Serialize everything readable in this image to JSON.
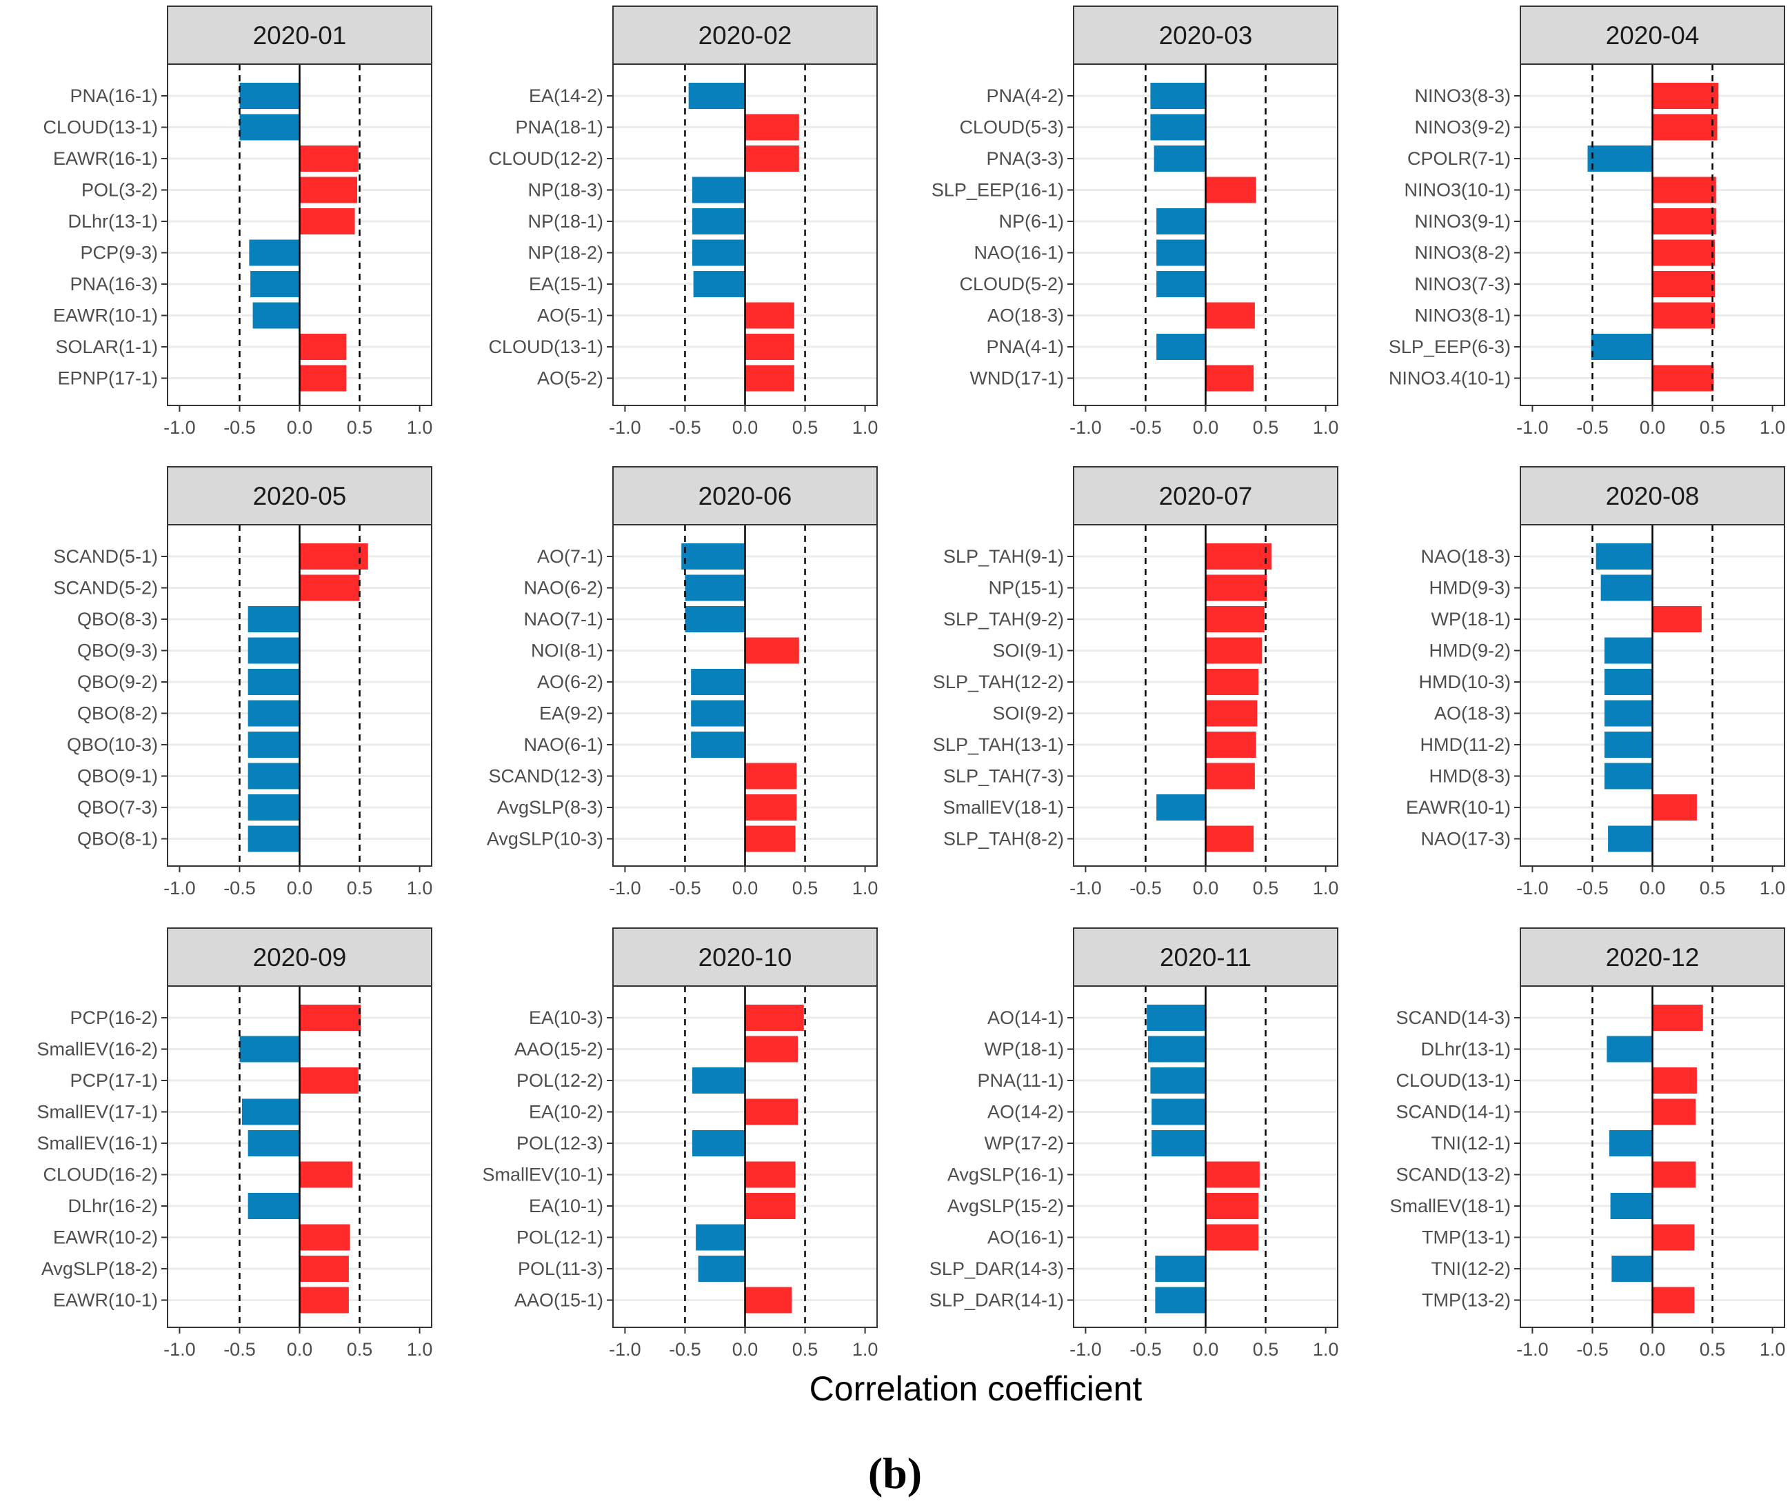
{
  "chart_data": {
    "type": "bar",
    "orientation": "horizontal",
    "xlabel": "Correlation coefficient",
    "caption": "(b)",
    "xlim": [
      -1.1,
      1.1
    ],
    "ticks": [
      -1.0,
      -0.5,
      0.0,
      0.5,
      1.0
    ],
    "tick_labels": [
      "-1.0",
      "-0.5",
      "0.0",
      "0.5",
      "1.0"
    ],
    "reference_lines": [
      -0.5,
      0.5
    ],
    "grid": true,
    "colors": {
      "positive": "#ff2a2a",
      "negative": "#0780bb",
      "strip": "#d9d9d9",
      "grid": "#ebebeb",
      "frame": "#333333"
    },
    "panels": [
      {
        "title": "2020-01",
        "categories": [
          "PNA(16-1)",
          "CLOUD(13-1)",
          "EAWR(16-1)",
          "POL(3-2)",
          "DLhr(13-1)",
          "PCP(9-3)",
          "PNA(16-3)",
          "EAWR(10-1)",
          "SOLAR(1-1)",
          "EPNP(17-1)"
        ],
        "values": [
          -0.5,
          -0.5,
          0.49,
          0.48,
          0.46,
          -0.42,
          -0.41,
          -0.39,
          0.39,
          0.39
        ]
      },
      {
        "title": "2020-02",
        "categories": [
          "EA(14-2)",
          "PNA(18-1)",
          "CLOUD(12-2)",
          "NP(18-3)",
          "NP(18-1)",
          "NP(18-2)",
          "EA(15-1)",
          "AO(5-1)",
          "CLOUD(13-1)",
          "AO(5-2)"
        ],
        "values": [
          -0.47,
          0.45,
          0.45,
          -0.44,
          -0.44,
          -0.44,
          -0.43,
          0.41,
          0.41,
          0.41
        ]
      },
      {
        "title": "2020-03",
        "categories": [
          "PNA(4-2)",
          "CLOUD(5-3)",
          "PNA(3-3)",
          "SLP_EEP(16-1)",
          "NP(6-1)",
          "NAO(16-1)",
          "CLOUD(5-2)",
          "AO(18-3)",
          "PNA(4-1)",
          "WND(17-1)"
        ],
        "values": [
          -0.46,
          -0.46,
          -0.43,
          0.42,
          -0.41,
          -0.41,
          -0.41,
          0.41,
          -0.41,
          0.4
        ]
      },
      {
        "title": "2020-04",
        "categories": [
          "NINO3(8-3)",
          "NINO3(9-2)",
          "CPOLR(7-1)",
          "NINO3(10-1)",
          "NINO3(9-1)",
          "NINO3(8-2)",
          "NINO3(7-3)",
          "NINO3(8-1)",
          "SLP_EEP(6-3)",
          "NINO3.4(10-1)"
        ],
        "values": [
          0.55,
          0.54,
          -0.54,
          0.53,
          0.53,
          0.52,
          0.52,
          0.52,
          -0.51,
          0.51
        ]
      },
      {
        "title": "2020-05",
        "categories": [
          "SCAND(5-1)",
          "SCAND(5-2)",
          "QBO(8-3)",
          "QBO(9-3)",
          "QBO(9-2)",
          "QBO(8-2)",
          "QBO(10-3)",
          "QBO(9-1)",
          "QBO(7-3)",
          "QBO(8-1)"
        ],
        "values": [
          0.57,
          0.5,
          -0.43,
          -0.43,
          -0.43,
          -0.43,
          -0.43,
          -0.43,
          -0.43,
          -0.43
        ]
      },
      {
        "title": "2020-06",
        "categories": [
          "AO(7-1)",
          "NAO(6-2)",
          "NAO(7-1)",
          "NOI(8-1)",
          "AO(6-2)",
          "EA(9-2)",
          "NAO(6-1)",
          "SCAND(12-3)",
          "AvgSLP(8-3)",
          "AvgSLP(10-3)"
        ],
        "values": [
          -0.53,
          -0.5,
          -0.5,
          0.45,
          -0.45,
          -0.45,
          -0.45,
          0.43,
          0.43,
          0.42
        ]
      },
      {
        "title": "2020-07",
        "categories": [
          "SLP_TAH(9-1)",
          "NP(15-1)",
          "SLP_TAH(9-2)",
          "SOI(9-1)",
          "SLP_TAH(12-2)",
          "SOI(9-2)",
          "SLP_TAH(13-1)",
          "SLP_TAH(7-3)",
          "SmallEV(18-1)",
          "SLP_TAH(8-2)"
        ],
        "values": [
          0.55,
          0.51,
          0.49,
          0.47,
          0.44,
          0.43,
          0.42,
          0.41,
          -0.41,
          0.4
        ]
      },
      {
        "title": "2020-08",
        "categories": [
          "NAO(18-3)",
          "HMD(9-3)",
          "WP(18-1)",
          "HMD(9-2)",
          "HMD(10-3)",
          "AO(18-3)",
          "HMD(11-2)",
          "HMD(8-3)",
          "EAWR(10-1)",
          "NAO(17-3)"
        ],
        "values": [
          -0.47,
          -0.43,
          0.41,
          -0.4,
          -0.4,
          -0.4,
          -0.4,
          -0.4,
          0.37,
          -0.37
        ]
      },
      {
        "title": "2020-09",
        "categories": [
          "PCP(16-2)",
          "SmallEV(16-2)",
          "PCP(17-1)",
          "SmallEV(17-1)",
          "SmallEV(16-1)",
          "CLOUD(16-2)",
          "DLhr(16-2)",
          "EAWR(10-2)",
          "AvgSLP(18-2)",
          "EAWR(10-1)"
        ],
        "values": [
          0.51,
          -0.5,
          0.49,
          -0.48,
          -0.43,
          0.44,
          -0.43,
          0.42,
          0.41,
          0.41
        ]
      },
      {
        "title": "2020-10",
        "categories": [
          "EA(10-3)",
          "AAO(15-2)",
          "POL(12-2)",
          "EA(10-2)",
          "POL(12-3)",
          "SmallEV(10-1)",
          "EA(10-1)",
          "POL(12-1)",
          "POL(11-3)",
          "AAO(15-1)"
        ],
        "values": [
          0.49,
          0.44,
          -0.44,
          0.44,
          -0.44,
          0.42,
          0.42,
          -0.41,
          -0.39,
          0.39
        ]
      },
      {
        "title": "2020-11",
        "categories": [
          "AO(14-1)",
          "WP(18-1)",
          "PNA(11-1)",
          "AO(14-2)",
          "WP(17-2)",
          "AvgSLP(16-1)",
          "AvgSLP(15-2)",
          "AO(16-1)",
          "SLP_DAR(14-3)",
          "SLP_DAR(14-1)"
        ],
        "values": [
          -0.49,
          -0.48,
          -0.46,
          -0.45,
          -0.45,
          0.45,
          0.44,
          0.44,
          -0.42,
          -0.42
        ]
      },
      {
        "title": "2020-12",
        "categories": [
          "SCAND(14-3)",
          "DLhr(13-1)",
          "CLOUD(13-1)",
          "SCAND(14-1)",
          "TNI(12-1)",
          "SCAND(13-2)",
          "SmallEV(18-1)",
          "TMP(13-1)",
          "TNI(12-2)",
          "TMP(13-2)"
        ],
        "values": [
          0.42,
          -0.38,
          0.37,
          0.36,
          -0.36,
          0.36,
          -0.35,
          0.35,
          -0.34,
          0.35
        ]
      }
    ]
  }
}
